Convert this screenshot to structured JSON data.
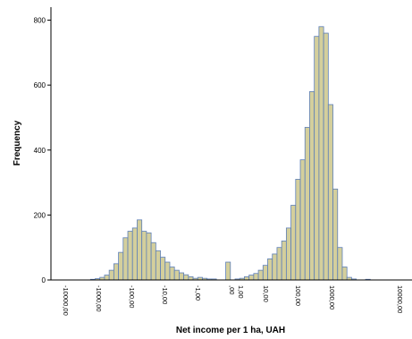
{
  "chart_data": {
    "type": "bar",
    "title": "",
    "xlabel": "Net income per 1 ha, UAH",
    "ylabel": "Frequency",
    "ylim": [
      0,
      840
    ],
    "yticks": [
      0,
      200,
      400,
      600,
      800
    ],
    "x_scale": "symmetric-log",
    "xticks": [
      "-10000,00",
      "-1000,00",
      "-100,00",
      "-10,00",
      "-1,00",
      ",00",
      "1,00",
      "10,00",
      "100,00",
      "1000,00",
      "10000,00"
    ],
    "grid": false,
    "legend": "none",
    "bar_fill": "#d4cf9c",
    "bar_edge": "#5d7fb8",
    "values": [
      0,
      0,
      0,
      0,
      0,
      0,
      2,
      4,
      8,
      15,
      30,
      50,
      85,
      130,
      150,
      160,
      185,
      150,
      145,
      115,
      90,
      70,
      55,
      40,
      30,
      22,
      16,
      10,
      5,
      8,
      5,
      3,
      3,
      0,
      0,
      55,
      0,
      3,
      5,
      10,
      15,
      20,
      30,
      45,
      65,
      80,
      100,
      120,
      160,
      230,
      310,
      370,
      470,
      580,
      750,
      780,
      760,
      540,
      280,
      100,
      40,
      8,
      3,
      0,
      0,
      2,
      0,
      0,
      0,
      0,
      0,
      0,
      0,
      0
    ]
  }
}
